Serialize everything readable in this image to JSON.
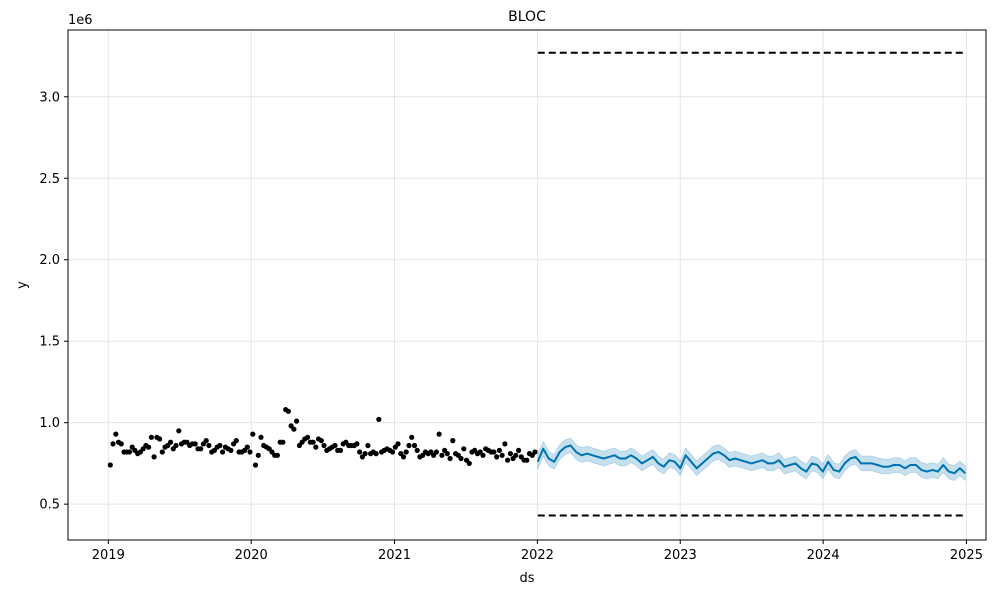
{
  "chart_data": {
    "type": "line",
    "title": "BLOC",
    "xlabel": "ds",
    "ylabel": "y",
    "y_scale_label": "1e6",
    "xlim": [
      "2018-09-20",
      "2025-02-20"
    ],
    "ylim": [
      0.28,
      3.41
    ],
    "y_multiplier": 1000000,
    "x_ticks": [
      "2019",
      "2020",
      "2021",
      "2022",
      "2023",
      "2024",
      "2025"
    ],
    "y_ticks": [
      "0.5",
      "1.0",
      "1.5",
      "2.0",
      "2.5",
      "3.0"
    ],
    "grid": true,
    "colors": {
      "observed": "#000000",
      "forecast": "#0072B2",
      "interval": "#0072B2",
      "cap_floor": "#000000"
    },
    "cap": {
      "name": "cap",
      "x": [
        "2022-01-02",
        "2024-12-29"
      ],
      "y": [
        3.27,
        3.27
      ]
    },
    "floor": {
      "name": "floor",
      "x": [
        "2022-01-02",
        "2024-12-29"
      ],
      "y": [
        0.43,
        0.43
      ]
    },
    "observed": {
      "name": "y",
      "x": [
        "2019-01-06",
        "2019-01-13",
        "2019-01-20",
        "2019-01-27",
        "2019-02-03",
        "2019-02-10",
        "2019-02-17",
        "2019-02-24",
        "2019-03-03",
        "2019-03-10",
        "2019-03-17",
        "2019-03-24",
        "2019-03-31",
        "2019-04-07",
        "2019-04-14",
        "2019-04-21",
        "2019-04-28",
        "2019-05-05",
        "2019-05-12",
        "2019-05-19",
        "2019-05-26",
        "2019-06-02",
        "2019-06-09",
        "2019-06-16",
        "2019-06-23",
        "2019-06-30",
        "2019-07-07",
        "2019-07-14",
        "2019-07-21",
        "2019-07-28",
        "2019-08-04",
        "2019-08-11",
        "2019-08-18",
        "2019-08-25",
        "2019-09-01",
        "2019-09-08",
        "2019-09-15",
        "2019-09-22",
        "2019-09-29",
        "2019-10-06",
        "2019-10-13",
        "2019-10-20",
        "2019-10-27",
        "2019-11-03",
        "2019-11-10",
        "2019-11-17",
        "2019-11-24",
        "2019-12-01",
        "2019-12-08",
        "2019-12-15",
        "2019-12-22",
        "2019-12-29",
        "2020-01-05",
        "2020-01-12",
        "2020-01-19",
        "2020-01-26",
        "2020-02-02",
        "2020-02-09",
        "2020-02-16",
        "2020-02-23",
        "2020-03-01",
        "2020-03-08",
        "2020-03-15",
        "2020-03-22",
        "2020-03-29",
        "2020-04-05",
        "2020-04-12",
        "2020-04-19",
        "2020-04-26",
        "2020-05-03",
        "2020-05-10",
        "2020-05-17",
        "2020-05-24",
        "2020-05-31",
        "2020-06-07",
        "2020-06-14",
        "2020-06-21",
        "2020-06-28",
        "2020-07-05",
        "2020-07-12",
        "2020-07-19",
        "2020-07-26",
        "2020-08-02",
        "2020-08-09",
        "2020-08-16",
        "2020-08-23",
        "2020-08-30",
        "2020-09-06",
        "2020-09-13",
        "2020-09-20",
        "2020-09-27",
        "2020-10-04",
        "2020-10-11",
        "2020-10-18",
        "2020-10-25",
        "2020-11-01",
        "2020-11-08",
        "2020-11-15",
        "2020-11-22",
        "2020-11-29",
        "2020-12-06",
        "2020-12-13",
        "2020-12-20",
        "2020-12-27",
        "2021-01-03",
        "2021-01-10",
        "2021-01-17",
        "2021-01-24",
        "2021-01-31",
        "2021-02-07",
        "2021-02-14",
        "2021-02-21",
        "2021-02-28",
        "2021-03-07",
        "2021-03-14",
        "2021-03-21",
        "2021-03-28",
        "2021-04-04",
        "2021-04-11",
        "2021-04-18",
        "2021-04-25",
        "2021-05-02",
        "2021-05-09",
        "2021-05-16",
        "2021-05-23",
        "2021-05-30",
        "2021-06-06",
        "2021-06-13",
        "2021-06-20",
        "2021-06-27",
        "2021-07-04",
        "2021-07-11",
        "2021-07-18",
        "2021-07-25",
        "2021-08-01",
        "2021-08-08",
        "2021-08-15",
        "2021-08-22",
        "2021-08-29",
        "2021-09-05",
        "2021-09-12",
        "2021-09-19",
        "2021-09-26",
        "2021-10-03",
        "2021-10-10",
        "2021-10-17",
        "2021-10-24",
        "2021-10-31",
        "2021-11-07",
        "2021-11-14",
        "2021-11-21",
        "2021-11-28",
        "2021-12-05",
        "2021-12-12",
        "2021-12-19",
        "2021-12-26"
      ],
      "y": [
        0.74,
        0.87,
        0.93,
        0.88,
        0.87,
        0.82,
        0.82,
        0.82,
        0.85,
        0.83,
        0.81,
        0.82,
        0.84,
        0.86,
        0.85,
        0.91,
        0.79,
        0.91,
        0.9,
        0.82,
        0.85,
        0.86,
        0.88,
        0.84,
        0.86,
        0.95,
        0.87,
        0.88,
        0.88,
        0.86,
        0.87,
        0.87,
        0.84,
        0.84,
        0.87,
        0.89,
        0.86,
        0.82,
        0.83,
        0.85,
        0.86,
        0.82,
        0.85,
        0.84,
        0.83,
        0.87,
        0.89,
        0.82,
        0.82,
        0.83,
        0.85,
        0.82,
        0.93,
        0.74,
        0.8,
        0.91,
        0.86,
        0.85,
        0.84,
        0.82,
        0.8,
        0.8,
        0.88,
        0.88,
        1.08,
        1.07,
        0.98,
        0.96,
        1.01,
        0.86,
        0.88,
        0.9,
        0.91,
        0.88,
        0.88,
        0.85,
        0.9,
        0.89,
        0.86,
        0.83,
        0.84,
        0.85,
        0.86,
        0.83,
        0.83,
        0.87,
        0.88,
        0.86,
        0.86,
        0.86,
        0.87,
        0.82,
        0.79,
        0.81,
        0.86,
        0.81,
        0.82,
        0.81,
        1.02,
        0.82,
        0.83,
        0.84,
        0.83,
        0.82,
        0.85,
        0.87,
        0.81,
        0.79,
        0.82,
        0.86,
        0.91,
        0.86,
        0.83,
        0.79,
        0.8,
        0.82,
        0.81,
        0.82,
        0.8,
        0.82,
        0.93,
        0.8,
        0.83,
        0.81,
        0.78,
        0.89,
        0.81,
        0.8,
        0.78,
        0.84,
        0.77,
        0.75,
        0.82,
        0.83,
        0.81,
        0.82,
        0.8,
        0.84,
        0.83,
        0.82,
        0.82,
        0.79,
        0.83,
        0.8,
        0.87,
        0.77,
        0.81,
        0.78,
        0.8,
        0.83,
        0.79,
        0.77,
        0.77,
        0.81,
        0.8,
        0.82
      ]
    },
    "forecast": {
      "name": "yhat",
      "x": [
        "2022-01-02",
        "2022-01-16",
        "2022-01-30",
        "2022-02-13",
        "2022-02-27",
        "2022-03-13",
        "2022-03-27",
        "2022-04-10",
        "2022-04-24",
        "2022-05-08",
        "2022-05-22",
        "2022-06-05",
        "2022-06-19",
        "2022-07-03",
        "2022-07-17",
        "2022-07-31",
        "2022-08-14",
        "2022-08-28",
        "2022-09-11",
        "2022-09-25",
        "2022-10-09",
        "2022-10-23",
        "2022-11-06",
        "2022-11-20",
        "2022-12-04",
        "2022-12-18",
        "2023-01-01",
        "2023-01-15",
        "2023-01-29",
        "2023-02-12",
        "2023-02-26",
        "2023-03-12",
        "2023-03-26",
        "2023-04-09",
        "2023-04-23",
        "2023-05-07",
        "2023-05-21",
        "2023-06-04",
        "2023-06-18",
        "2023-07-02",
        "2023-07-16",
        "2023-07-30",
        "2023-08-13",
        "2023-08-27",
        "2023-09-10",
        "2023-09-24",
        "2023-10-08",
        "2023-10-22",
        "2023-11-05",
        "2023-11-19",
        "2023-12-03",
        "2023-12-17",
        "2023-12-31",
        "2024-01-14",
        "2024-01-28",
        "2024-02-11",
        "2024-02-25",
        "2024-03-10",
        "2024-03-24",
        "2024-04-07",
        "2024-04-21",
        "2024-05-05",
        "2024-05-19",
        "2024-06-02",
        "2024-06-16",
        "2024-06-30",
        "2024-07-14",
        "2024-07-28",
        "2024-08-11",
        "2024-08-25",
        "2024-09-08",
        "2024-09-22",
        "2024-10-06",
        "2024-10-20",
        "2024-11-03",
        "2024-11-17",
        "2024-12-01",
        "2024-12-15",
        "2024-12-29"
      ],
      "yhat": [
        0.76,
        0.84,
        0.78,
        0.76,
        0.82,
        0.85,
        0.86,
        0.82,
        0.8,
        0.81,
        0.8,
        0.79,
        0.78,
        0.79,
        0.8,
        0.78,
        0.78,
        0.8,
        0.78,
        0.75,
        0.77,
        0.79,
        0.75,
        0.73,
        0.77,
        0.76,
        0.72,
        0.8,
        0.76,
        0.72,
        0.75,
        0.78,
        0.81,
        0.82,
        0.8,
        0.77,
        0.78,
        0.77,
        0.76,
        0.75,
        0.76,
        0.77,
        0.75,
        0.75,
        0.77,
        0.73,
        0.74,
        0.75,
        0.72,
        0.7,
        0.75,
        0.74,
        0.7,
        0.76,
        0.71,
        0.7,
        0.75,
        0.78,
        0.79,
        0.75,
        0.75,
        0.75,
        0.74,
        0.73,
        0.73,
        0.74,
        0.74,
        0.72,
        0.74,
        0.74,
        0.71,
        0.7,
        0.71,
        0.7,
        0.74,
        0.7,
        0.69,
        0.72,
        0.69
      ],
      "interval_halfwidth": 0.045
    }
  }
}
